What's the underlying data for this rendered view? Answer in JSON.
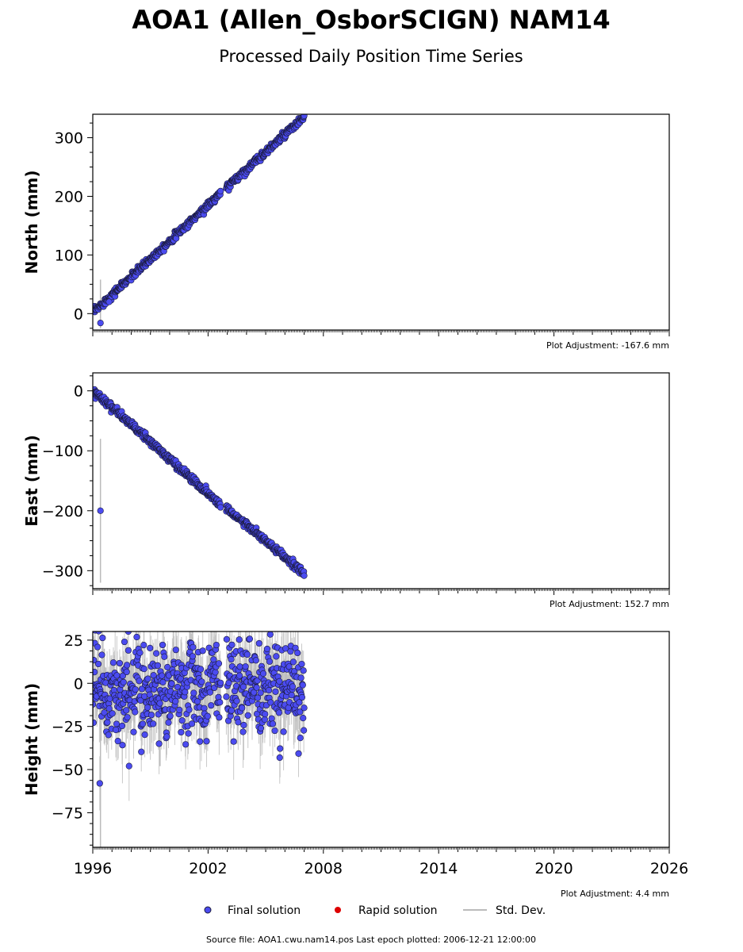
{
  "title": "AOA1 (Allen_OsborSCIGN) NAM14",
  "subtitle": "Processed Daily Position Time Series",
  "footer": "Source file: AOA1.cwu.nam14.pos  Last epoch plotted: 2006-12-21 12:00:00",
  "legend": {
    "final": "Final solution",
    "rapid": "Rapid solution",
    "std": "Std. Dev."
  },
  "colors": {
    "final": "#4b4bf0",
    "final_edge": "#1a1a3a",
    "rapid": "#dd0000",
    "std": "#bbbbbb"
  },
  "chart_data": [
    {
      "type": "scatter",
      "ylabel": "North (mm)",
      "adjustment": "Plot Adjustment: -167.6 mm",
      "xlim": [
        1996,
        2026
      ],
      "ylim": [
        -28,
        340
      ],
      "yticks": [
        0,
        100,
        200,
        300
      ],
      "xticks": [
        1996,
        2002,
        2008,
        2014,
        2020,
        2026
      ],
      "show_xtick_labels": false,
      "segments": [
        {
          "x0": 1996.05,
          "y0": 3,
          "x1": 2002.65,
          "y1": 205
        },
        {
          "x0": 2002.95,
          "y0": 215,
          "x1": 2007.0,
          "y1": 335
        }
      ],
      "noise": 3,
      "outliers": [
        [
          1996.4,
          -16
        ],
        [
          1996.85,
          20
        ]
      ],
      "stddev_spikes": [
        [
          1996.4,
          -25,
          58
        ]
      ]
    },
    {
      "type": "scatter",
      "ylabel": "East (mm)",
      "adjustment": "Plot Adjustment: 152.7 mm",
      "xlim": [
        1996,
        2026
      ],
      "ylim": [
        -330,
        30
      ],
      "yticks": [
        0,
        -100,
        -200,
        -300
      ],
      "xticks": [
        1996,
        2002,
        2008,
        2014,
        2020,
        2026
      ],
      "show_xtick_labels": false,
      "segments": [
        {
          "x0": 1996.05,
          "y0": 0,
          "x1": 2002.65,
          "y1": -190
        },
        {
          "x0": 2002.95,
          "y0": -195,
          "x1": 2007.0,
          "y1": -305
        }
      ],
      "noise": 3,
      "outliers": [
        [
          1996.4,
          -200
        ]
      ],
      "stddev_spikes": [
        [
          1996.4,
          -320,
          -80
        ]
      ]
    },
    {
      "type": "scatter",
      "ylabel": "Height (mm)",
      "adjustment": "Plot Adjustment: 4.4 mm",
      "xlim": [
        1996,
        2026
      ],
      "ylim": [
        -95,
        30
      ],
      "yticks": [
        25,
        0,
        -25,
        -50,
        -75
      ],
      "xticks": [
        1996,
        2002,
        2008,
        2014,
        2020,
        2026
      ],
      "show_xtick_labels": true,
      "segments": [
        {
          "x0": 1996.0,
          "y0": -4,
          "x1": 2002.65,
          "y1": -4
        },
        {
          "x0": 2002.95,
          "y0": -2,
          "x1": 2007.0,
          "y1": -4
        }
      ],
      "noise": 13,
      "seasonal_amplitude": 5,
      "outliers": [
        [
          1996.25,
          21
        ],
        [
          1997.65,
          24
        ],
        [
          1997.85,
          30
        ],
        [
          1999.45,
          -35
        ],
        [
          1997.2,
          -27
        ]
      ],
      "stddev_spikes": [
        [
          1996.4,
          -95,
          12
        ],
        [
          1999.5,
          -48,
          -20
        ],
        [
          1996.6,
          -35,
          20
        ]
      ]
    }
  ]
}
